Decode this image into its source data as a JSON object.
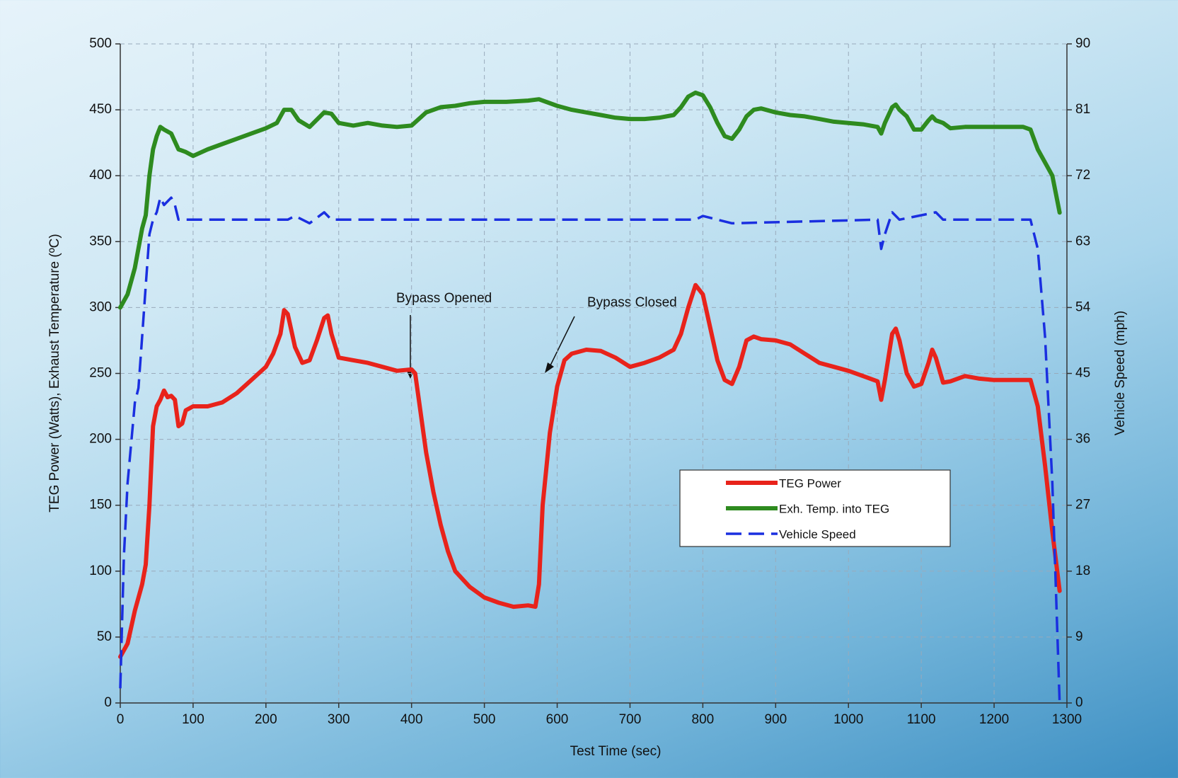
{
  "chart_data": {
    "type": "line",
    "x_label": "Test Time (sec)",
    "y_label": "TEG Power (Watts), Exhaust Temperature (ºC)",
    "y2_label": "Vehicle Speed (mph)",
    "xlim": [
      0,
      1300
    ],
    "xticks": [
      0,
      100,
      200,
      300,
      400,
      500,
      600,
      700,
      800,
      900,
      1000,
      1100,
      1200,
      1300
    ],
    "ylim": [
      0,
      500
    ],
    "yticks": [
      0,
      50,
      100,
      150,
      200,
      250,
      300,
      350,
      400,
      450,
      500
    ],
    "y2lim": [
      0,
      90
    ],
    "y2ticks": [
      0,
      9,
      18,
      27,
      36,
      45,
      54,
      63,
      72,
      81,
      90
    ],
    "grid": true,
    "legend_position": "center-right",
    "annotations": [
      "Bypass Opened",
      "Bypass Closed"
    ],
    "series": [
      {
        "name": "TEG Power",
        "color": "#e8231b",
        "dash": false,
        "x": [
          0,
          10,
          20,
          30,
          35,
          40,
          45,
          50,
          55,
          60,
          65,
          70,
          75,
          80,
          85,
          90,
          100,
          120,
          140,
          160,
          180,
          200,
          210,
          220,
          225,
          230,
          240,
          250,
          260,
          270,
          280,
          285,
          290,
          300,
          320,
          340,
          360,
          380,
          400,
          405,
          410,
          420,
          430,
          440,
          450,
          460,
          480,
          500,
          520,
          540,
          560,
          570,
          575,
          580,
          590,
          600,
          610,
          620,
          640,
          660,
          680,
          700,
          720,
          740,
          760,
          770,
          780,
          790,
          800,
          810,
          820,
          830,
          840,
          850,
          860,
          870,
          880,
          900,
          920,
          940,
          960,
          980,
          1000,
          1020,
          1040,
          1045,
          1050,
          1060,
          1065,
          1070,
          1080,
          1090,
          1100,
          1110,
          1115,
          1120,
          1130,
          1140,
          1160,
          1180,
          1200,
          1220,
          1240,
          1250,
          1260,
          1270,
          1280,
          1290
        ],
        "values": [
          35,
          45,
          70,
          90,
          105,
          150,
          210,
          225,
          230,
          237,
          232,
          233,
          230,
          210,
          212,
          222,
          225,
          225,
          228,
          235,
          245,
          255,
          265,
          280,
          298,
          295,
          270,
          258,
          260,
          275,
          292,
          294,
          280,
          262,
          260,
          258,
          255,
          252,
          253,
          250,
          230,
          190,
          160,
          135,
          115,
          100,
          88,
          80,
          76,
          73,
          74,
          73,
          90,
          150,
          205,
          240,
          260,
          265,
          268,
          267,
          262,
          255,
          258,
          262,
          268,
          280,
          300,
          317,
          310,
          285,
          260,
          245,
          242,
          255,
          275,
          278,
          276,
          275,
          272,
          265,
          258,
          255,
          252,
          248,
          244,
          230,
          245,
          280,
          284,
          275,
          250,
          240,
          242,
          258,
          268,
          262,
          243,
          244,
          248,
          246,
          245,
          245,
          245,
          245,
          225,
          180,
          130,
          85
        ]
      },
      {
        "name": "Exh. Temp. into TEG",
        "color": "#2e8b1f",
        "dash": false,
        "x": [
          0,
          10,
          20,
          30,
          35,
          40,
          45,
          50,
          55,
          60,
          70,
          80,
          90,
          100,
          120,
          140,
          160,
          180,
          200,
          215,
          225,
          235,
          245,
          260,
          280,
          290,
          300,
          320,
          340,
          360,
          380,
          400,
          420,
          440,
          460,
          480,
          500,
          530,
          560,
          575,
          600,
          620,
          640,
          660,
          680,
          700,
          720,
          740,
          760,
          770,
          780,
          790,
          800,
          810,
          820,
          830,
          840,
          850,
          860,
          870,
          880,
          900,
          920,
          940,
          960,
          980,
          1000,
          1020,
          1040,
          1045,
          1050,
          1060,
          1065,
          1070,
          1080,
          1090,
          1100,
          1110,
          1115,
          1120,
          1130,
          1140,
          1160,
          1180,
          1200,
          1220,
          1240,
          1250,
          1260,
          1270,
          1280,
          1290
        ],
        "values": [
          300,
          310,
          330,
          360,
          370,
          400,
          420,
          430,
          437,
          435,
          432,
          420,
          418,
          415,
          420,
          424,
          428,
          432,
          436,
          440,
          450,
          450,
          442,
          437,
          448,
          447,
          440,
          438,
          440,
          438,
          437,
          438,
          448,
          452,
          453,
          455,
          456,
          456,
          457,
          458,
          453,
          450,
          448,
          446,
          444,
          443,
          443,
          444,
          446,
          452,
          460,
          463,
          461,
          452,
          440,
          430,
          428,
          435,
          445,
          450,
          451,
          448,
          446,
          445,
          443,
          441,
          440,
          439,
          437,
          432,
          440,
          452,
          454,
          450,
          445,
          435,
          435,
          442,
          445,
          442,
          440,
          436,
          437,
          437,
          437,
          437,
          437,
          435,
          420,
          410,
          400,
          372
        ]
      },
      {
        "name": "Vehicle Speed",
        "color": "#1a2fe0",
        "dash": true,
        "axis": "y2",
        "x": [
          0,
          5,
          10,
          20,
          25,
          30,
          35,
          40,
          45,
          50,
          55,
          60,
          70,
          75,
          80,
          85,
          100,
          230,
          240,
          260,
          280,
          290,
          300,
          790,
          800,
          840,
          1040,
          1045,
          1050,
          1060,
          1070,
          1120,
          1130,
          1250,
          1260,
          1270,
          1280,
          1285,
          1290
        ],
        "values": [
          2,
          20,
          30,
          41,
          43,
          50,
          57,
          64,
          66,
          67,
          69,
          68,
          69,
          68,
          66,
          66,
          66,
          66,
          66.5,
          65.5,
          67,
          66,
          66,
          66,
          66.5,
          65.5,
          66,
          62,
          64,
          67,
          66,
          67,
          66,
          66,
          62,
          50,
          30,
          15,
          0
        ]
      }
    ]
  }
}
